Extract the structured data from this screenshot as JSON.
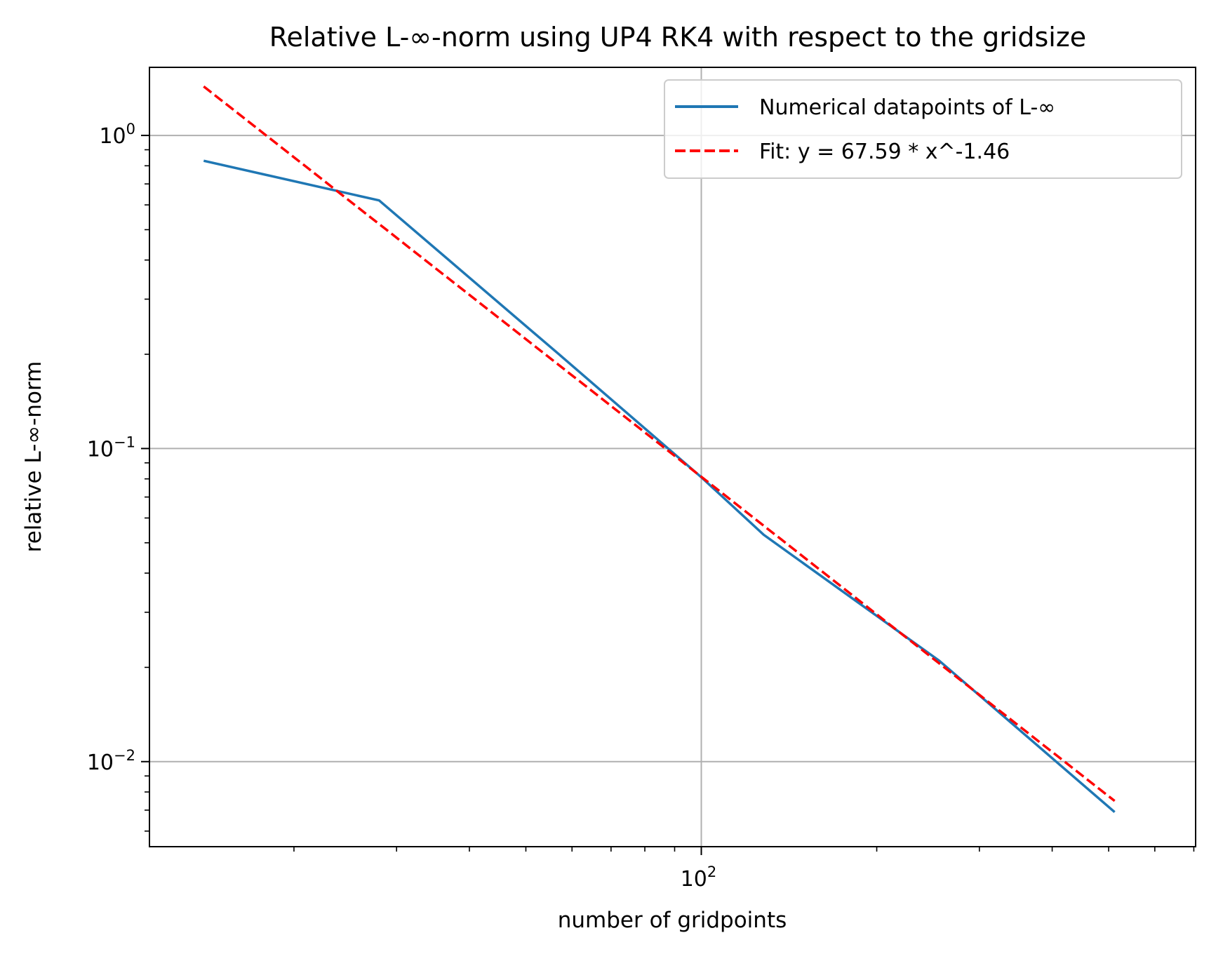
{
  "chart_data": {
    "type": "line",
    "title": "Relative L-∞-norm using UP4 RK4 with respect to the gridsize",
    "xlabel": "number of gridpoints",
    "ylabel": "relative L-∞-norm",
    "xscale": "log",
    "yscale": "log",
    "xlim": [
      11.3,
      705
    ],
    "ylim": [
      0.00535,
      1.65
    ],
    "grid": true,
    "legend_position": "top-right",
    "x_ticks": [
      {
        "base": "10",
        "exp": "2",
        "value": 100
      }
    ],
    "y_ticks": [
      {
        "base": "10",
        "exp": "0",
        "value": 1
      },
      {
        "base": "10",
        "exp": "−1",
        "value": 0.1
      },
      {
        "base": "10",
        "exp": "−2",
        "value": 0.01
      }
    ],
    "x_minor_ticks": [
      20,
      30,
      40,
      50,
      60,
      70,
      80,
      90,
      200,
      300,
      400,
      500,
      600,
      700
    ],
    "y_minor_ticks": [
      0.006,
      0.007,
      0.008,
      0.009,
      0.02,
      0.03,
      0.04,
      0.05,
      0.06,
      0.07,
      0.08,
      0.09,
      0.2,
      0.3,
      0.4,
      0.5,
      0.6,
      0.7,
      0.8,
      0.9
    ],
    "series": [
      {
        "name": "Numerical datapoints of L-∞",
        "color": "#1f77b4",
        "style": "solid",
        "x": [
          14,
          28,
          57,
          100,
          128,
          256,
          512
        ],
        "y": [
          0.83,
          0.62,
          0.2,
          0.081,
          0.053,
          0.021,
          0.0069
        ]
      },
      {
        "name": "Fit: y = 67.59 * x^-1.46",
        "color": "#ff0000",
        "style": "dashed",
        "fit": {
          "a": 67.59,
          "b": -1.46
        },
        "x_range": [
          14,
          512
        ]
      }
    ]
  }
}
